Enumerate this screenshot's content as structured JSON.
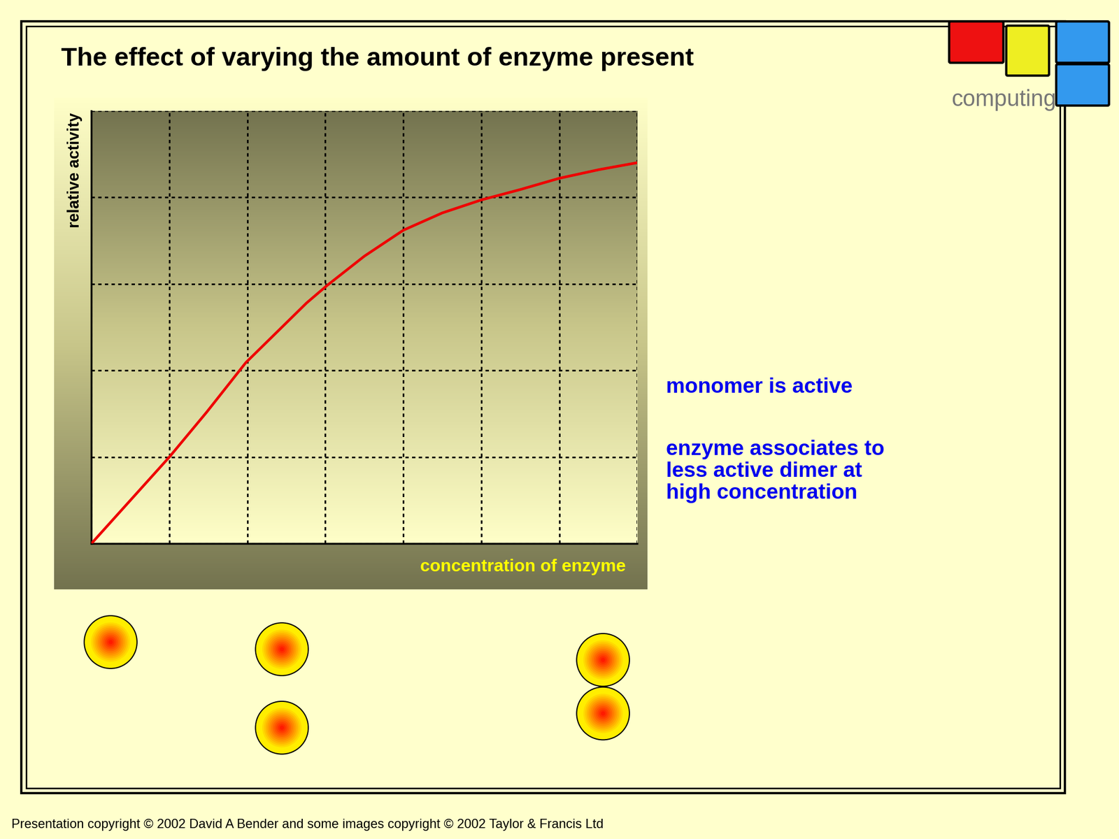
{
  "chart_data": {
    "type": "line",
    "title": "The effect of varying the amount of enzyme present",
    "x_label": "concentration of enzyme",
    "y_label": "relative activity",
    "x": [
      0,
      1.0,
      1.48,
      1.98,
      2.76,
      3.02,
      3.5,
      4.0,
      4.5,
      5.0,
      5.5,
      6.0,
      6.51,
      7.0
    ],
    "values": [
      0,
      1.0,
      1.52,
      2.09,
      2.78,
      2.98,
      3.32,
      3.62,
      3.82,
      3.97,
      4.09,
      4.22,
      4.32,
      4.4
    ],
    "color": "#ee0000",
    "xlim": [
      0,
      7
    ],
    "ylim": [
      0,
      5
    ],
    "xticks": [
      0,
      1,
      2,
      3,
      4,
      5,
      6,
      7
    ],
    "yticks": [
      0,
      1,
      2,
      3,
      4,
      5
    ],
    "grid": true,
    "tick_labels": false,
    "annotations": [
      "monomer is active",
      "enzyme associates to\nless active dimer at\nhigh concentration"
    ]
  },
  "logo": "computing",
  "footer": "Presentation copyright © 2002 David A Bender and some images copyright © 2002 Taylor & Francis Ltd"
}
